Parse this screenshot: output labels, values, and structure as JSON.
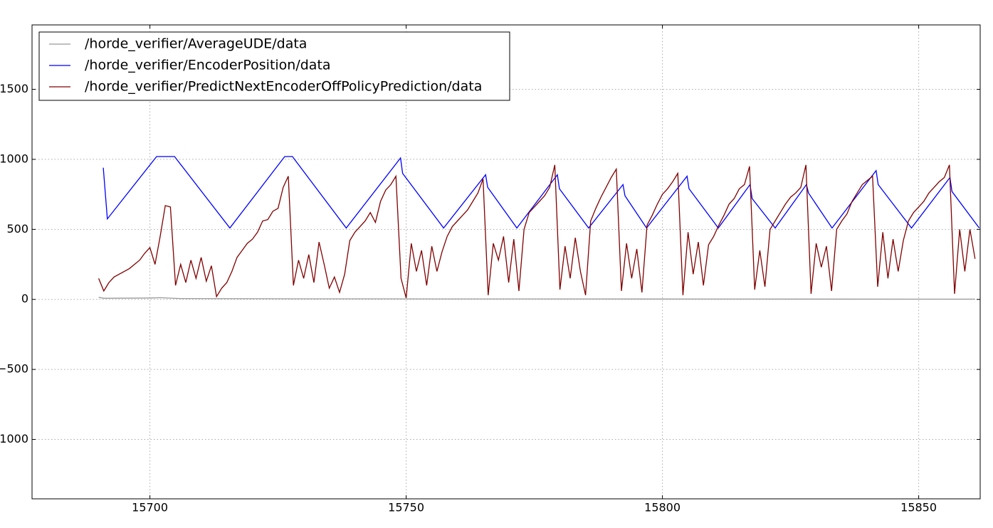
{
  "chart_data": {
    "type": "line",
    "xlim": [
      15677,
      15862
    ],
    "ylim": [
      -1424,
      1960
    ],
    "xticks": [
      15700,
      15750,
      15800,
      15850
    ],
    "yticks": [
      {
        "value": -1000,
        "label": "−1000"
      },
      {
        "value": -500,
        "label": "−500"
      },
      0,
      500,
      1000,
      1500
    ],
    "grid": true,
    "legend": "upper left",
    "series": [
      {
        "name": "/horde_verifier/AverageUDE/data",
        "color": "#999999",
        "x": [
          15690,
          15691,
          15700,
          15702,
          15706,
          15730,
          15861
        ],
        "values": [
          15,
          8,
          10,
          12,
          6,
          4,
          2
        ]
      },
      {
        "name": "/horde_verifier/EncoderPosition/data",
        "color": "#0000ff",
        "x": [
          15690.9,
          15691.7,
          15701.3,
          15704.8,
          15715.6,
          15726.3,
          15727.8,
          15738.3,
          15748.9,
          15749.3,
          15757.3,
          15765.5,
          15765.9,
          15771.6,
          15779.5,
          15779.9,
          15785.6,
          15792.3,
          15792.7,
          15796.9,
          15804.8,
          15805.2,
          15810.9,
          15817.1,
          15817.5,
          15822,
          15828.1,
          15828.5,
          15833.1,
          15841.7,
          15842.1,
          15848.6,
          15856.1,
          15856.5,
          15861.8
        ],
        "values": [
          940,
          575,
          1020,
          1020,
          510,
          1020,
          1020,
          510,
          1010,
          900,
          510,
          890,
          800,
          510,
          890,
          790,
          510,
          820,
          740,
          510,
          880,
          790,
          510,
          820,
          720,
          510,
          820,
          760,
          510,
          920,
          820,
          510,
          870,
          770,
          510
        ]
      },
      {
        "name": "/horde_verifier/PredictNextEncoderOffPolicyPrediction/data",
        "color": "#800000",
        "x": [
          15690,
          15691,
          15692,
          15693,
          15694,
          15695,
          15696,
          15697,
          15698,
          15699,
          15700,
          15701,
          15702,
          15703,
          15704,
          15705,
          15706,
          15707,
          15708,
          15709,
          15710,
          15711,
          15712,
          15713,
          15714,
          15715,
          15716,
          15717,
          15718,
          15719,
          15720,
          15721,
          15722,
          15723,
          15724,
          15725,
          15726,
          15727,
          15728,
          15729,
          15730,
          15731,
          15732,
          15733,
          15734,
          15735,
          15736,
          15737,
          15738,
          15739,
          15740,
          15741,
          15742,
          15743,
          15744,
          15745,
          15746,
          15747,
          15748,
          15749,
          15750,
          15751,
          15752,
          15753,
          15754,
          15755,
          15756,
          15757,
          15758,
          15759,
          15760,
          15761,
          15762,
          15763,
          15764,
          15765,
          15766,
          15767,
          15768,
          15769,
          15770,
          15771,
          15772,
          15773,
          15774,
          15775,
          15776,
          15777,
          15778,
          15779,
          15780,
          15781,
          15782,
          15783,
          15784,
          15785,
          15786,
          15787,
          15788,
          15789,
          15790,
          15791,
          15792,
          15793,
          15794,
          15795,
          15796,
          15797,
          15798,
          15799,
          15800,
          15801,
          15802,
          15803,
          15804,
          15805,
          15806,
          15807,
          15808,
          15809,
          15810,
          15811,
          15812,
          15813,
          15814,
          15815,
          15816,
          15817,
          15818,
          15819,
          15820,
          15821,
          15822,
          15823,
          15824,
          15825,
          15826,
          15827,
          15828,
          15829,
          15830,
          15831,
          15832,
          15833,
          15834,
          15835,
          15836,
          15837,
          15838,
          15839,
          15840,
          15841,
          15842,
          15843,
          15844,
          15845,
          15846,
          15847,
          15848,
          15849,
          15850,
          15851,
          15852,
          15853,
          15854,
          15855,
          15856,
          15857,
          15858,
          15859,
          15860,
          15861
        ],
        "values": [
          150,
          60,
          120,
          160,
          180,
          200,
          220,
          250,
          280,
          330,
          370,
          250,
          450,
          670,
          660,
          100,
          250,
          120,
          280,
          150,
          300,
          130,
          240,
          20,
          80,
          120,
          200,
          300,
          350,
          400,
          430,
          480,
          560,
          570,
          630,
          650,
          800,
          880,
          100,
          280,
          150,
          320,
          120,
          410,
          250,
          80,
          160,
          50,
          180,
          420,
          480,
          520,
          560,
          620,
          550,
          700,
          780,
          820,
          880,
          150,
          10,
          400,
          200,
          350,
          100,
          380,
          200,
          340,
          450,
          520,
          560,
          600,
          640,
          700,
          760,
          860,
          30,
          400,
          280,
          450,
          120,
          430,
          60,
          500,
          620,
          660,
          700,
          740,
          800,
          960,
          70,
          380,
          150,
          440,
          200,
          30,
          560,
          650,
          730,
          800,
          870,
          930,
          60,
          400,
          150,
          360,
          50,
          530,
          600,
          680,
          750,
          790,
          840,
          900,
          30,
          480,
          180,
          410,
          100,
          390,
          450,
          530,
          600,
          680,
          720,
          790,
          820,
          950,
          70,
          350,
          90,
          500,
          560,
          620,
          680,
          730,
          760,
          800,
          960,
          40,
          400,
          230,
          380,
          60,
          500,
          560,
          610,
          700,
          760,
          820,
          850,
          880,
          90,
          480,
          150,
          430,
          200,
          420,
          560,
          620,
          660,
          700,
          760,
          800,
          840,
          870,
          960,
          40,
          500,
          200,
          500,
          290
        ]
      }
    ]
  }
}
